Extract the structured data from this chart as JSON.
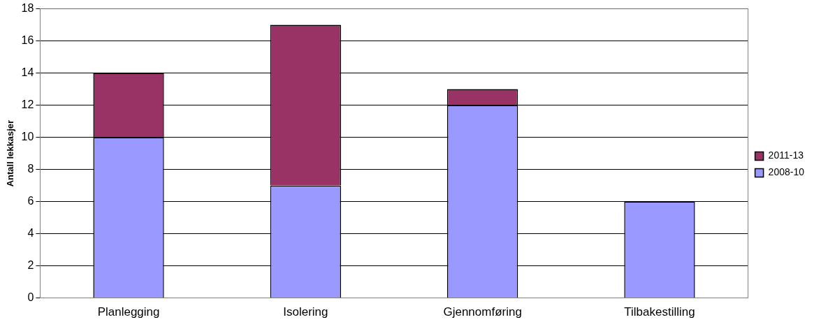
{
  "chart_data": {
    "type": "bar",
    "stacked": true,
    "ylabel": "Antall lekkasjer",
    "categories": [
      "Planlegging",
      "Isolering",
      "Gjennomføring",
      "Tilbakestilling"
    ],
    "series": [
      {
        "name": "2008-10",
        "color": "#9999ff",
        "values": [
          10,
          7,
          12,
          6
        ]
      },
      {
        "name": "2011-13",
        "color": "#993366",
        "values": [
          4,
          10,
          1,
          0
        ]
      }
    ],
    "ylim": [
      0,
      18
    ],
    "yticks": [
      0,
      2,
      4,
      6,
      8,
      10,
      12,
      14,
      16,
      18
    ],
    "grid": "y",
    "legend": "right"
  }
}
